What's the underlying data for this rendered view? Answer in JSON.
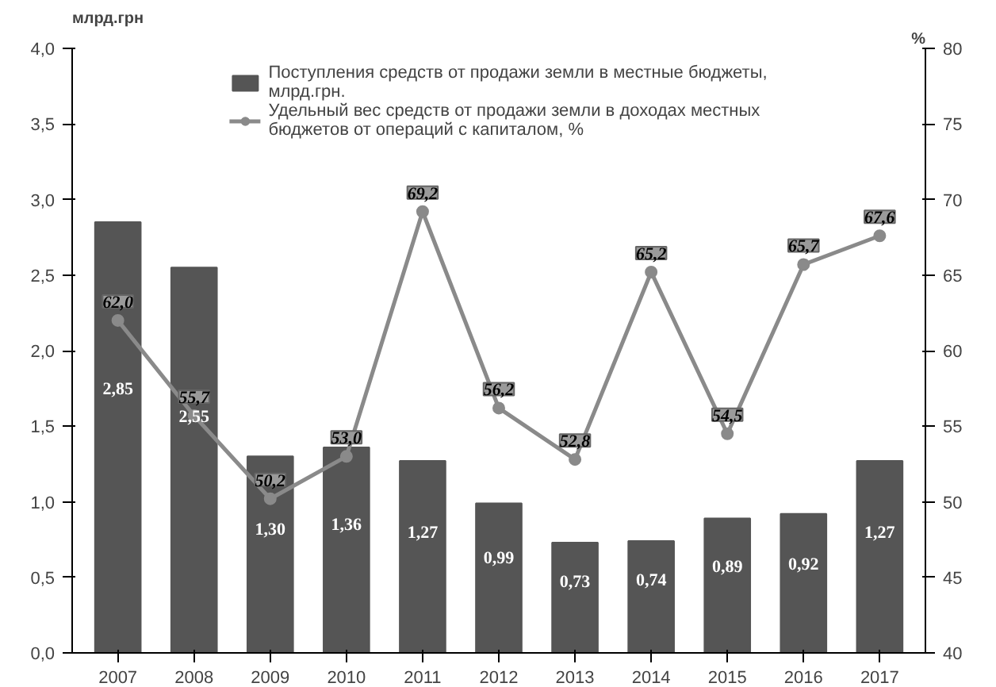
{
  "chart_data": {
    "type": "bar",
    "ylabel": "млрд.грн",
    "y2label": "%",
    "categories": [
      "2007",
      "2008",
      "2009",
      "2010",
      "2011",
      "2012",
      "2013",
      "2014",
      "2015",
      "2016",
      "2017"
    ],
    "series": [
      {
        "name": "Поступления средств от продажи земли в местные бюджеты, млрд.грн.",
        "color": "#555555",
        "values": [
          2.85,
          2.55,
          1.3,
          1.36,
          1.27,
          0.99,
          0.73,
          0.74,
          0.89,
          0.92,
          1.27
        ],
        "value_labels": [
          "2,85",
          "2,55",
          "1,30",
          "1,36",
          "1,27",
          "0,99",
          "0,73",
          "0,74",
          "0,89",
          "0,92",
          "1,27"
        ]
      },
      {
        "name": "Удельный вес средств от продажи земли в доходах местных бюджетов от операций с капиталом, %",
        "type": "line",
        "axis": "y2",
        "color": "#8a8a8a",
        "marker": "circle",
        "values": [
          62.0,
          55.7,
          50.2,
          53.0,
          69.2,
          56.2,
          52.8,
          65.2,
          54.5,
          65.7,
          67.6
        ],
        "value_labels": [
          "62,0",
          "55,7",
          "50,2",
          "53,0",
          "69,2",
          "56,2",
          "52,8",
          "65,2",
          "54,5",
          "65,7",
          "67,6"
        ]
      }
    ],
    "ylim": [
      0,
      4
    ],
    "yticks": [
      {
        "value": 0,
        "label": "0,0"
      },
      {
        "value": 0.5,
        "label": "0,5"
      },
      {
        "value": 1,
        "label": "1,0"
      },
      {
        "value": 1.5,
        "label": "1,5"
      },
      {
        "value": 2,
        "label": "2,0"
      },
      {
        "value": 2.5,
        "label": "2,5"
      },
      {
        "value": 3,
        "label": "3,0"
      },
      {
        "value": 3.5,
        "label": "3,5"
      },
      {
        "value": 4,
        "label": "4,0"
      }
    ],
    "y2lim": [
      40,
      80
    ],
    "y2ticks": [
      40,
      45,
      50,
      55,
      60,
      65,
      70,
      75,
      80
    ],
    "grid": false,
    "legend": "top"
  }
}
